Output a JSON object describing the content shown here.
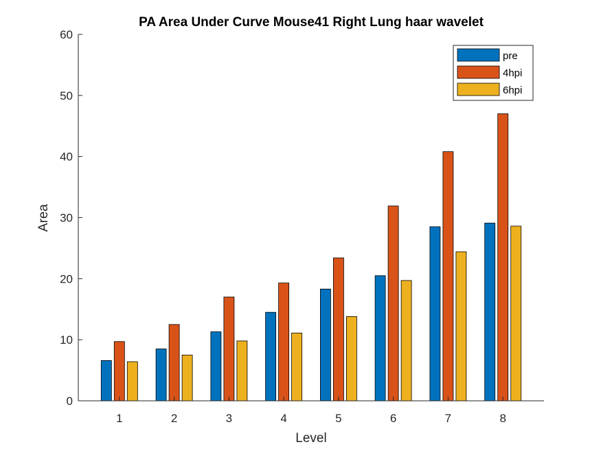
{
  "chart_data": {
    "type": "bar",
    "title": "PA Area Under Curve Mouse41 Right Lung haar wavelet",
    "xlabel": "Level",
    "ylabel": "Area",
    "categories": [
      "1",
      "2",
      "3",
      "4",
      "5",
      "6",
      "7",
      "8"
    ],
    "ylim": [
      0,
      60
    ],
    "yticks": [
      0,
      10,
      20,
      30,
      40,
      50,
      60
    ],
    "grid": false,
    "legend_position": "top-right",
    "series": [
      {
        "name": "pre",
        "color": "#0072BD",
        "values": [
          6.6,
          8.5,
          11.3,
          14.5,
          18.3,
          20.5,
          28.5,
          29.1
        ]
      },
      {
        "name": "4hpi",
        "color": "#D95319",
        "values": [
          9.7,
          12.5,
          17.0,
          19.3,
          23.4,
          31.9,
          40.8,
          47.0
        ]
      },
      {
        "name": "6hpi",
        "color": "#EDB120",
        "values": [
          6.4,
          7.5,
          9.8,
          11.1,
          13.8,
          19.7,
          24.4,
          28.6
        ]
      }
    ]
  }
}
